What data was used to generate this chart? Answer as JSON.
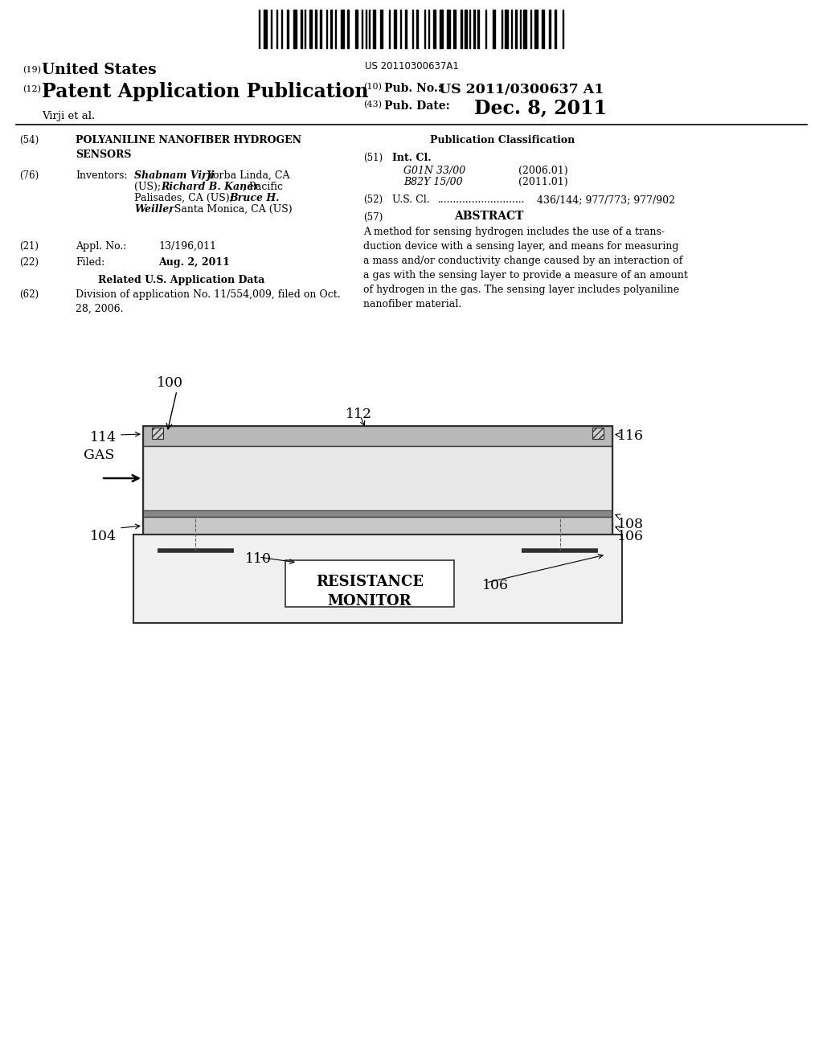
{
  "bg_color": "#ffffff",
  "barcode_text": "US 20110300637A1",
  "header_19_text": "United States",
  "header_12_text": "Patent Application Publication",
  "header_10_value": "US 2011/0300637 A1",
  "header_43_value": "Dec. 8, 2011",
  "author_line": "Virji et al.",
  "field_54_label": "(54)",
  "field_54_title": "POLYANILINE NANOFIBER HYDROGEN\nSENSORS",
  "field_76_label": "(76)",
  "field_76_key": "Inventors:",
  "field_76_names": "Shabnam Virji",
  "field_76_rest": ", Yorba Linda, CA\n(US); ",
  "field_76_name2": "Richard B. Kaner",
  "field_76_rest2": ", Pacific\nPalisades, CA (US); ",
  "field_76_name3": "Bruce H.\nWeiller",
  "field_76_rest3": ", Santa Monica, CA (US)",
  "field_21_label": "(21)",
  "field_21_key": "Appl. No.:",
  "field_21_value": "13/196,011",
  "field_22_label": "(22)",
  "field_22_key": "Filed:",
  "field_22_value": "Aug. 2, 2011",
  "related_header": "Related U.S. Application Data",
  "field_62_label": "(62)",
  "field_62_value": "Division of application No. 11/554,009, filed on Oct.\n28, 2006.",
  "pub_class_header": "Publication Classification",
  "field_51_label": "(51)",
  "field_51_key": "Int. Cl.",
  "field_51_class1": "G01N 33/00",
  "field_51_year1": "(2006.01)",
  "field_51_class2": "B82Y 15/00",
  "field_51_year2": "(2011.01)",
  "field_52_label": "(52)",
  "field_52_key": "U.S. Cl.",
  "field_52_dots": "............................",
  "field_52_value": "436/144; 977/773; 977/902",
  "field_57_label": "(57)",
  "field_57_key": "ABSTRACT",
  "abstract_text": "A method for sensing hydrogen includes the use of a trans-\nduction device with a sensing layer, and means for measuring\na mass and/or conductivity change caused by an interaction of\na gas with the sensing layer to provide a measure of an amount\nof hydrogen in the gas. The sensing layer includes polyaniline\nnanofiber material.",
  "diagram_label_100": "100",
  "diagram_label_112": "112",
  "diagram_label_114": "114",
  "diagram_label_116": "116",
  "diagram_label_108": "108",
  "diagram_label_104": "104",
  "diagram_label_106a": "106",
  "diagram_label_106b": "106",
  "diagram_label_110": "110",
  "diagram_gas": "GAS",
  "diagram_resistance": "RESISTANCE\nMONITOR"
}
